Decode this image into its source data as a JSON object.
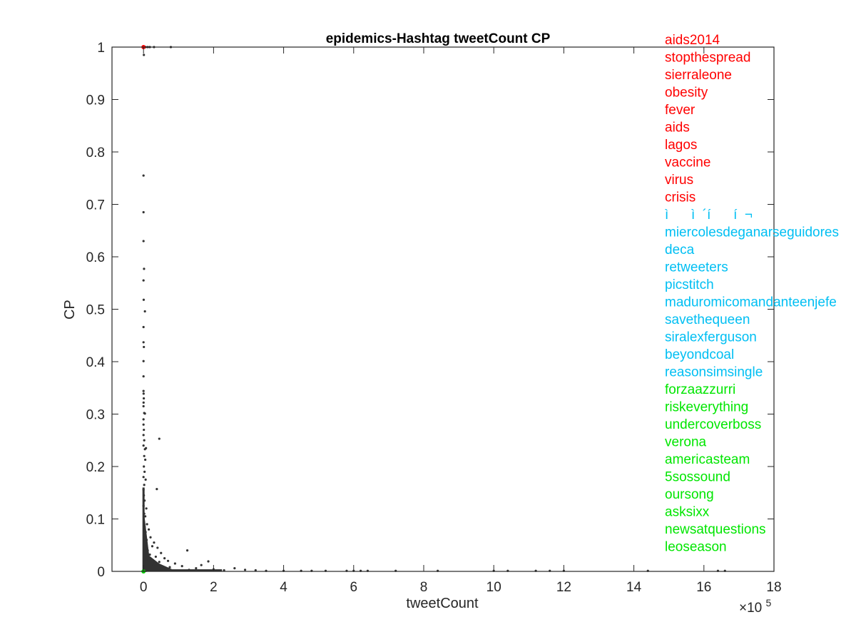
{
  "chart_data": {
    "type": "scatter",
    "title": "epidemics-Hashtag tweetCount CP",
    "xlabel": "tweetCount",
    "ylabel": "CP",
    "x_exponent_label": "×10",
    "x_exponent_power": "5",
    "xlim": [
      -90000,
      1800000
    ],
    "ylim": [
      0,
      1
    ],
    "xticks": [
      0,
      200000,
      400000,
      600000,
      800000,
      1000000,
      1200000,
      1400000,
      1600000,
      1800000
    ],
    "xtick_labels": [
      "0",
      "2",
      "4",
      "6",
      "8",
      "10",
      "12",
      "14",
      "16",
      "18"
    ],
    "yticks": [
      0,
      0.1,
      0.2,
      0.3,
      0.4,
      0.5,
      0.6,
      0.7,
      0.8,
      0.9,
      1
    ],
    "ytick_labels": [
      "0",
      "0.1",
      "0.2",
      "0.3",
      "0.4",
      "0.5",
      "0.6",
      "0.7",
      "0.8",
      "0.9",
      "1"
    ],
    "grid": false,
    "colors": {
      "points": "#333333",
      "highlight_top": "#ff0000",
      "highlight_bottom": "#00cc00",
      "axes": "#262626"
    },
    "points": [
      [
        0,
        0.755
      ],
      [
        0,
        0.685
      ],
      [
        0,
        0.63
      ],
      [
        1500,
        0.577
      ],
      [
        0,
        0.555
      ],
      [
        500,
        0.518
      ],
      [
        4000,
        0.496
      ],
      [
        0,
        0.466
      ],
      [
        0,
        0.437
      ],
      [
        1000,
        0.428
      ],
      [
        0,
        0.401
      ],
      [
        0,
        0.372
      ],
      [
        0,
        0.344
      ],
      [
        300,
        0.339
      ],
      [
        800,
        0.33
      ],
      [
        200,
        0.322
      ],
      [
        0,
        0.315
      ],
      [
        2000,
        0.302
      ],
      [
        4000,
        0.301
      ],
      [
        0,
        0.29
      ],
      [
        0,
        0.28
      ],
      [
        1000,
        0.27
      ],
      [
        0,
        0.26
      ],
      [
        2000,
        0.25
      ],
      [
        0,
        0.24
      ],
      [
        4000,
        0.233
      ],
      [
        7000,
        0.235
      ],
      [
        2000,
        0.22
      ],
      [
        5000,
        0.213
      ],
      [
        1000,
        0.2
      ],
      [
        3000,
        0.19
      ],
      [
        0,
        0.18
      ],
      [
        6000,
        0.175
      ],
      [
        2000,
        0.165
      ],
      [
        0,
        0.156
      ],
      [
        1000,
        0.145
      ],
      [
        3000,
        0.135
      ],
      [
        0,
        0.125
      ],
      [
        8000,
        0.12
      ],
      [
        2000,
        0.11
      ],
      [
        5000,
        0.105
      ],
      [
        1000,
        0.095
      ],
      [
        10000,
        0.09
      ],
      [
        3000,
        0.085
      ],
      [
        15000,
        0.08
      ],
      [
        6000,
        0.075
      ],
      [
        2000,
        0.07
      ],
      [
        20000,
        0.065
      ],
      [
        9000,
        0.06
      ],
      [
        30000,
        0.055
      ],
      [
        4000,
        0.05
      ],
      [
        25000,
        0.048
      ],
      [
        40000,
        0.045
      ],
      [
        12000,
        0.04
      ],
      [
        50000,
        0.035
      ],
      [
        18000,
        0.032
      ],
      [
        35000,
        0.028
      ],
      [
        60000,
        0.025
      ],
      [
        8000,
        0.022
      ],
      [
        70000,
        0.02
      ],
      [
        45000,
        0.018
      ],
      [
        90000,
        0.015
      ],
      [
        28000,
        0.012
      ],
      [
        110000,
        0.01
      ],
      [
        75000,
        0.008
      ],
      [
        150000,
        0.006
      ],
      [
        52000,
        0.005
      ],
      [
        200000,
        0.004
      ],
      [
        130000,
        0.003
      ],
      [
        0,
        0.002
      ],
      [
        45000,
        0.253
      ],
      [
        38000,
        0.157
      ],
      [
        125000,
        0.04
      ],
      [
        185000,
        0.019
      ],
      [
        260000,
        0.006
      ],
      [
        165000,
        0.012
      ],
      [
        230000,
        0.002
      ],
      [
        290000,
        0.003
      ],
      [
        320000,
        0.002
      ],
      [
        350000,
        0.001
      ],
      [
        400000,
        0.001
      ],
      [
        450000,
        0.001
      ],
      [
        480000,
        0.001
      ],
      [
        520000,
        0.001
      ],
      [
        580000,
        0.001
      ],
      [
        600000,
        0.001
      ],
      [
        620000,
        0.001
      ],
      [
        640000,
        0.001
      ],
      [
        720000,
        0.001
      ],
      [
        840000,
        0.001
      ],
      [
        1000000,
        0.001
      ],
      [
        1040000,
        0.001
      ],
      [
        1120000,
        0.001
      ],
      [
        1160000,
        0.001
      ],
      [
        1200000,
        0.001
      ],
      [
        1440000,
        0.001
      ],
      [
        1640000,
        0.001
      ],
      [
        1660000,
        0.001
      ],
      [
        2000,
        1
      ],
      [
        6000,
        1
      ],
      [
        12000,
        1
      ],
      [
        18000,
        1
      ],
      [
        30000,
        1
      ],
      [
        78000,
        1
      ],
      [
        1000,
        0.985
      ],
      [
        0,
        0.001
      ],
      [
        500,
        0.001
      ],
      [
        1000,
        0.001
      ],
      [
        3000,
        0.001
      ],
      [
        7000,
        0.001
      ]
    ],
    "highlight_points": [
      {
        "x": 0,
        "y": 1,
        "group": "top"
      },
      {
        "x": 0,
        "y": 0,
        "group": "bottom"
      }
    ],
    "legend_groups": [
      {
        "color": "#ff0000",
        "labels": [
          "aids2014",
          "stopthespread",
          "sierraleone",
          "obesity",
          "fever",
          "aids",
          "lagos",
          "vaccine",
          "virus",
          "crisis"
        ]
      },
      {
        "color": "#00bff3",
        "labels": [
          "ì      ì  ´í      í  ¬",
          "miercolesdeganarseguidores",
          "deca",
          "retweeters",
          "picstitch",
          "maduromicomandanteenjefe",
          "savethequeen",
          "siralexferguson",
          "beyondcoal",
          "reasonsimsingle"
        ]
      },
      {
        "color": "#00e600",
        "labels": [
          "forzaazzurri",
          "riskeverything",
          "undercoverboss",
          "verona",
          "americasteam",
          "5sossound",
          "oursong",
          "asksixx",
          "newsatquestions",
          "leoseason"
        ]
      }
    ]
  }
}
